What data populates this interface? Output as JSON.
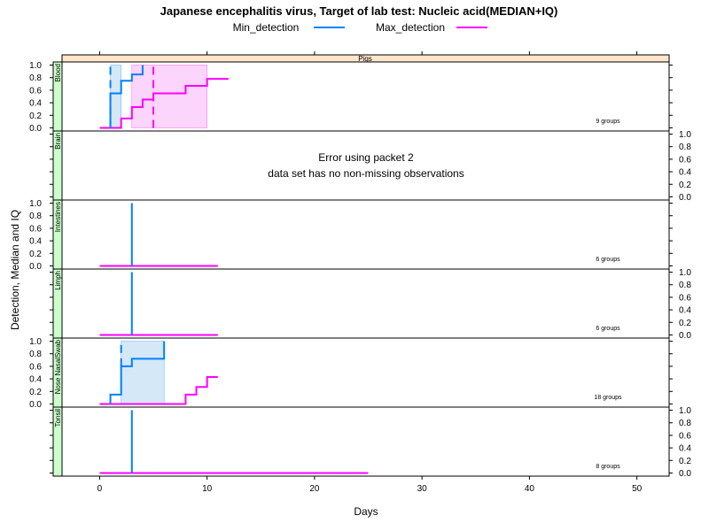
{
  "chart_data": {
    "type": "line",
    "title": "Japanese encephalitis virus, Target of lab test: Nucleic acid(MEDIAN+IQ)",
    "xlabel": "Days",
    "ylabel": "Detection, Median and IQ",
    "strip_top": "Pigs",
    "xlim": [
      -3.5,
      53
    ],
    "ylim": [
      -0.05,
      1.05
    ],
    "x_ticks": [
      0,
      10,
      20,
      30,
      40,
      50
    ],
    "x_tick_labels": [
      "0",
      "10",
      "20",
      "30",
      "40",
      "50"
    ],
    "y_ticks": [
      0,
      0.2,
      0.4,
      0.6,
      0.8,
      1.0
    ],
    "y_tick_labels": [
      "0.0",
      "0.2",
      "0.4",
      "0.6",
      "0.8",
      "1.0"
    ],
    "legend": {
      "position": "top",
      "entries": [
        {
          "label": "Min_detection",
          "color": "#0080ff"
        },
        {
          "label": "Max_detection",
          "color": "#ff00ff"
        }
      ]
    },
    "colors": {
      "min": "#0080ff",
      "max": "#ff00ff",
      "min_fill": "#d5e8f8",
      "max_fill": "#fbd5fb",
      "strip_left": "#ccffcc",
      "strip_top": "#ffe5cc"
    },
    "panels": [
      {
        "name": "Blood",
        "groups_label": "9 groups",
        "y_axis_side": "left",
        "min_steps": [
          [
            1,
            0
          ],
          [
            1,
            0.55
          ],
          [
            2,
            0.55
          ],
          [
            2,
            0.75
          ],
          [
            3,
            0.75
          ],
          [
            3,
            0.85
          ],
          [
            4,
            0.85
          ],
          [
            4,
            1.0
          ]
        ],
        "max_steps": [
          [
            0,
            0
          ],
          [
            2,
            0
          ],
          [
            2,
            0.15
          ],
          [
            3,
            0.15
          ],
          [
            3,
            0.33
          ],
          [
            4,
            0.33
          ],
          [
            4,
            0.45
          ],
          [
            5,
            0.45
          ],
          [
            5,
            0.55
          ],
          [
            8,
            0.55
          ],
          [
            8,
            0.67
          ],
          [
            10,
            0.67
          ],
          [
            10,
            0.78
          ],
          [
            12,
            0.78
          ]
        ],
        "min_iq_box": [
          1,
          2,
          0,
          1.0
        ],
        "max_iq_box": [
          3,
          10,
          0,
          1.0
        ],
        "min_median": {
          "x": 1,
          "y0": 0.0,
          "y1": 1.0
        },
        "max_median": {
          "x": 5,
          "y0": 0.0,
          "y1": 1.0
        }
      },
      {
        "name": "Brain",
        "y_axis_side": "right",
        "error_lines": [
          "Error using packet 2",
          "data set has no non-missing observations"
        ]
      },
      {
        "name": "Intestines",
        "groups_label": "6 groups",
        "y_axis_side": "left",
        "min_steps": [
          [
            3,
            0
          ],
          [
            3,
            1.0
          ]
        ],
        "max_steps": [
          [
            0,
            0
          ],
          [
            11,
            0
          ]
        ]
      },
      {
        "name": "Limph",
        "groups_label": "6 groups",
        "y_axis_side": "right",
        "min_steps": [
          [
            3,
            0
          ],
          [
            3,
            1.0
          ]
        ],
        "max_steps": [
          [
            0,
            0
          ],
          [
            11,
            0
          ]
        ]
      },
      {
        "name": "Nose NasalSwab",
        "groups_label": "18 groups",
        "y_axis_side": "left",
        "min_steps": [
          [
            1,
            0
          ],
          [
            1,
            0.15
          ],
          [
            2,
            0.15
          ],
          [
            2,
            0.6
          ],
          [
            3,
            0.6
          ],
          [
            3,
            0.72
          ],
          [
            6,
            0.72
          ],
          [
            6,
            1.0
          ]
        ],
        "max_steps": [
          [
            0,
            0
          ],
          [
            8,
            0
          ],
          [
            8,
            0.15
          ],
          [
            9,
            0.15
          ],
          [
            9,
            0.27
          ],
          [
            10,
            0.27
          ],
          [
            10,
            0.43
          ],
          [
            11,
            0.43
          ]
        ],
        "min_iq_box": [
          2,
          6,
          0,
          1.0
        ],
        "min_median": {
          "x": 2,
          "y0": 0.6,
          "y1": 1.0
        }
      },
      {
        "name": "Tonsil",
        "groups_label": "8 groups",
        "y_axis_side": "right",
        "min_steps": [
          [
            3,
            0
          ],
          [
            3,
            1.0
          ]
        ],
        "max_steps": [
          [
            0,
            0
          ],
          [
            25,
            0
          ]
        ]
      }
    ]
  }
}
